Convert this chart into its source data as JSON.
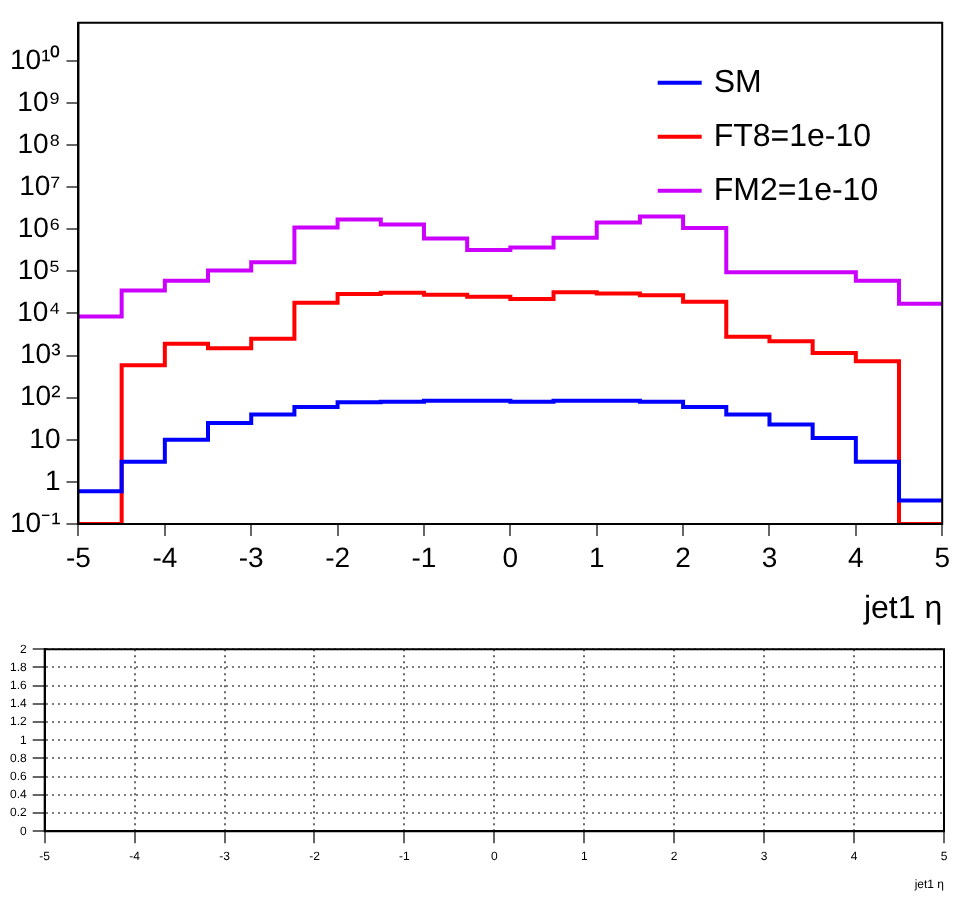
{
  "chart_data": [
    {
      "type": "histogram",
      "xlabel": "jet1 η",
      "bins": [
        -5,
        -4.5,
        -4,
        -3.5,
        -3,
        -2.5,
        -2,
        -1.5,
        -1,
        -0.5,
        0,
        0.5,
        1,
        1.5,
        2,
        2.5,
        3,
        3.5,
        4,
        4.5,
        5
      ],
      "series": [
        {
          "name": "SM",
          "color": "#0000ff",
          "values": [
            0.6,
            3,
            10,
            25,
            40,
            60,
            78,
            80,
            85,
            85,
            80,
            85,
            85,
            80,
            60,
            40,
            23,
            11,
            3,
            0.36
          ]
        },
        {
          "name": "FT8=1e-10",
          "color": "#ff0000",
          "values": [
            0.1,
            590,
            1900,
            1500,
            2500,
            18000,
            29000,
            31000,
            28000,
            25000,
            22000,
            32000,
            30000,
            27000,
            19000,
            2800,
            2200,
            1150,
            730,
            0.1
          ]
        },
        {
          "name": "FM2=1e-10",
          "color": "#cc00ff",
          "values": [
            8500,
            35000,
            60000,
            105000,
            165000,
            1100000,
            1700000,
            1300000,
            600000,
            320000,
            370000,
            630000,
            1450000,
            2000000,
            1070000,
            95000,
            95000,
            95000,
            60000,
            17000
          ]
        }
      ],
      "log": true,
      "xlim": [
        -5,
        5
      ],
      "xticks": [
        -5,
        -4,
        -3,
        -2,
        -1,
        0,
        1,
        2,
        3,
        4,
        5
      ],
      "ylim": [
        0.1,
        80000000000
      ],
      "yticks": [
        {
          "value": 0.1,
          "label": "10⁻¹"
        },
        1,
        10,
        {
          "value": 100,
          "label": "10²"
        },
        {
          "value": 1000,
          "label": "10³"
        },
        {
          "value": 10000,
          "label": "10⁴"
        },
        {
          "value": 100000,
          "label": "10⁵"
        },
        {
          "value": 1000000,
          "label": "10⁶"
        },
        {
          "value": 10000000,
          "label": "10⁷"
        },
        {
          "value": 100000000,
          "label": "10⁸"
        },
        {
          "value": 1000000000,
          "label": "10⁹"
        },
        {
          "value": 10000000000,
          "label": "10¹⁰"
        }
      ],
      "legend": "top right",
      "grid": false
    },
    {
      "type": "line",
      "xlabel": "jet1 η",
      "xlim": [
        -5,
        5
      ],
      "xticks": [
        -5,
        -4,
        -3,
        -2,
        -1,
        0,
        1,
        2,
        3,
        4,
        5
      ],
      "ylim": [
        0,
        2
      ],
      "yticks": [
        0,
        0.2,
        0.4,
        0.6,
        0.8,
        1,
        1.2,
        1.4,
        1.6,
        1.8,
        2
      ],
      "grid": true
    }
  ]
}
